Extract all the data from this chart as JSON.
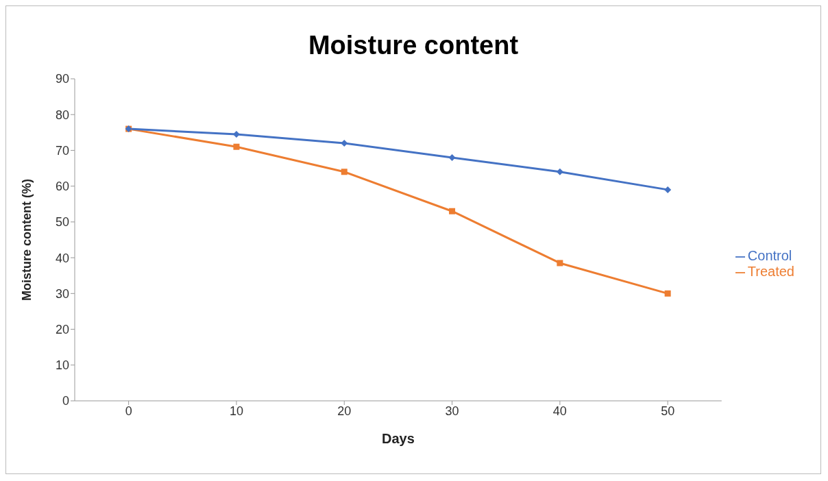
{
  "chart_data": {
    "type": "line",
    "title": "Moisture content",
    "xlabel": "Days",
    "ylabel": "Moisture content (%)",
    "categories": [
      "0",
      "10",
      "20",
      "30",
      "40",
      "50"
    ],
    "series": [
      {
        "name": "Control",
        "color": "#4472c4",
        "marker": "diamond",
        "values": [
          76,
          74.5,
          72,
          68,
          64,
          59
        ]
      },
      {
        "name": "Treated",
        "color": "#ed7d31",
        "marker": "square",
        "values": [
          76,
          71,
          64,
          53,
          38.5,
          30
        ]
      }
    ],
    "ylim": [
      0,
      90
    ],
    "yticks": [
      0,
      10,
      20,
      30,
      40,
      50,
      60,
      70,
      80,
      90
    ],
    "grid": false,
    "legend": "right",
    "line_style": "solid"
  }
}
